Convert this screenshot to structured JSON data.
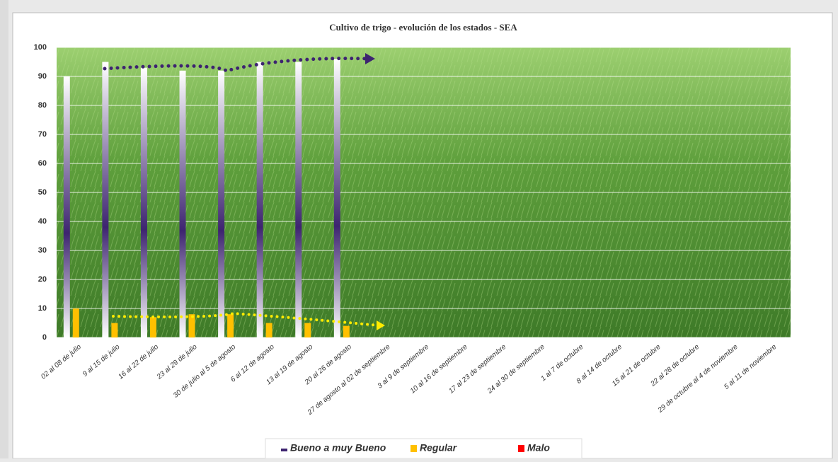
{
  "chart_data": {
    "type": "bar",
    "title": "Cultivo de trigo - evolución de los estados - SEA",
    "categories": [
      "02 al 08 de julio",
      "9 al 15 de julio",
      "16 al 22 de julio",
      "23 al 29 de julio",
      "30 de julio al 5 de agosto",
      "6 al 12 de agosto",
      "13 al 19 de agosto",
      "20 al 26 de agosto",
      "27 de agosto al 02 de septiembre",
      "3 al 9 de septiembre",
      "10 al 16 de septiembre",
      "17 al 23 de septiembre",
      "24 al 30 de septiembre",
      "1 al 7 de octubre",
      "8 al 14 de octubre",
      "15 al 21 de octubre",
      "22 al 28 de octubre",
      "29 de octubre al 4 de noviembre",
      "5 al 11 de noviembre"
    ],
    "series": [
      {
        "name": "Bueno a muy Bueno",
        "color": "#3d2470",
        "values": [
          90,
          95,
          93,
          92,
          92,
          95,
          95,
          96,
          null,
          null,
          null,
          null,
          null,
          null,
          null,
          null,
          null,
          null,
          null
        ]
      },
      {
        "name": "Regular",
        "color": "#ffc000",
        "values": [
          10,
          5,
          7,
          8,
          8,
          5,
          5,
          4,
          null,
          null,
          null,
          null,
          null,
          null,
          null,
          null,
          null,
          null,
          null
        ]
      },
      {
        "name": "Malo",
        "color": "#ff0000",
        "values": [
          0,
          0,
          0,
          0,
          0,
          0,
          0,
          0,
          null,
          null,
          null,
          null,
          null,
          null,
          null,
          null,
          null,
          null,
          null
        ]
      }
    ],
    "ylim": [
      0,
      100
    ],
    "yticks": [
      0,
      10,
      20,
      30,
      40,
      50,
      60,
      70,
      80,
      90,
      100
    ],
    "grid": true,
    "legend": "bottom"
  }
}
